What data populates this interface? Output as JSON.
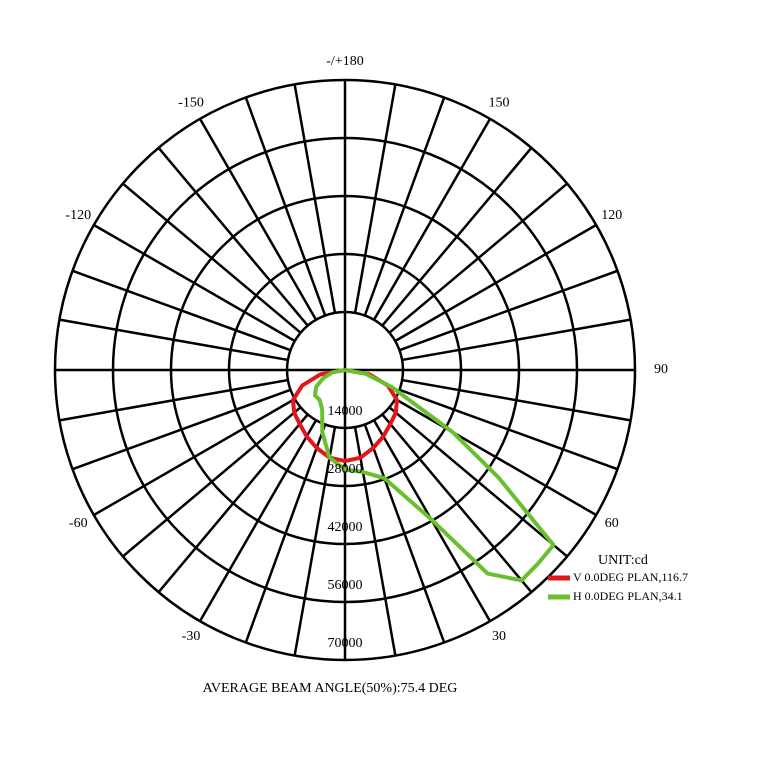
{
  "chart_data": {
    "type": "polar",
    "unit_label": "UNIT:cd",
    "footnote": "AVERAGE BEAM ANGLE(50%):75.4 DEG",
    "rlim": [
      0,
      70000
    ],
    "rticks": [
      14000,
      28000,
      42000,
      56000,
      70000
    ],
    "thetaticks": [
      {
        "value": 180,
        "label": "-/+180"
      },
      150,
      120,
      90,
      60,
      30,
      -30,
      -60,
      -120,
      -150
    ],
    "spoke_step": 10,
    "series": [
      {
        "name": "V 0.0DEG PLAN,116.7",
        "color": "#e0161b",
        "theta": [
          -90,
          -80,
          -70,
          -60,
          -50,
          -40,
          -30,
          -20,
          -10,
          0,
          10,
          20,
          30,
          40,
          50,
          60,
          70,
          80,
          90
        ],
        "values": [
          0,
          6000,
          11000,
          14500,
          16000,
          17000,
          18500,
          20000,
          21500,
          22000,
          21500,
          20000,
          18500,
          17000,
          16000,
          14500,
          11000,
          6000,
          0
        ]
      },
      {
        "name": "H 0.0DEG PLAN,34.1",
        "color": "#6abf2e",
        "theta": [
          -90,
          -80,
          -70,
          -60,
          -50,
          -40,
          -30,
          -20,
          -10,
          0,
          10,
          20,
          30,
          35,
          40,
          45,
          50,
          55,
          60,
          70,
          80,
          90
        ],
        "values": [
          0,
          3000,
          5500,
          8000,
          9500,
          9500,
          11000,
          16000,
          21500,
          24000,
          25000,
          27800,
          41600,
          60000,
          66300,
          66000,
          65700,
          45200,
          30000,
          12000,
          5000,
          0
        ]
      }
    ]
  }
}
